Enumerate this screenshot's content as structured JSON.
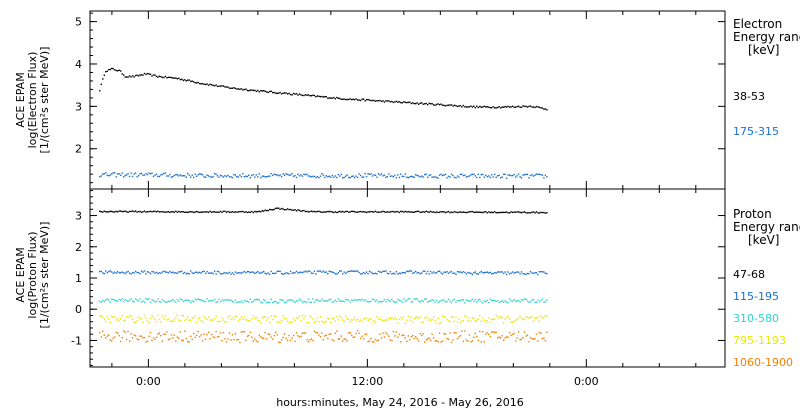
{
  "colors": {
    "black": "#000000",
    "blue": "#1a6fd0",
    "cyan": "#30d0d0",
    "yellow": "#e8e800",
    "orange": "#f08000"
  },
  "chart_data": [
    {
      "type": "scatter",
      "panel": "electron",
      "ylabel": [
        "ACE EPAM",
        "log(Electron Flux)",
        "[1/(cm²s ster MeV)]"
      ],
      "yticks": [
        2,
        3,
        4,
        5
      ],
      "ylim": [
        1.05,
        5.25
      ],
      "legend_title": [
        "Electron",
        "Energy range",
        "[keV]"
      ],
      "series": [
        {
          "name": "38-53",
          "color": "#000000",
          "points": [
            [
              -2.7,
              3.4
            ],
            [
              -2.4,
              3.85
            ],
            [
              -2.0,
              3.9
            ],
            [
              -1.6,
              3.85
            ],
            [
              -1.3,
              3.72
            ],
            [
              -0.8,
              3.72
            ],
            [
              -0.2,
              3.78
            ],
            [
              0.5,
              3.72
            ],
            [
              1.5,
              3.68
            ],
            [
              3.0,
              3.55
            ],
            [
              4.5,
              3.45
            ],
            [
              6.0,
              3.38
            ],
            [
              7.5,
              3.32
            ],
            [
              9.0,
              3.26
            ],
            [
              10.5,
              3.2
            ],
            [
              12.0,
              3.16
            ],
            [
              13.5,
              3.12
            ],
            [
              15.0,
              3.08
            ],
            [
              16.5,
              3.04
            ],
            [
              18.0,
              3.0
            ],
            [
              19.5,
              3.0
            ],
            [
              21.0,
              3.02
            ],
            [
              21.8,
              2.95
            ]
          ]
        },
        {
          "name": "175-315",
          "color": "#1a6fd0",
          "points": [
            [
              -2.7,
              1.4
            ],
            [
              0.0,
              1.4
            ],
            [
              3.0,
              1.38
            ],
            [
              6.0,
              1.38
            ],
            [
              9.0,
              1.38
            ],
            [
              12.0,
              1.38
            ],
            [
              15.0,
              1.37
            ],
            [
              18.0,
              1.37
            ],
            [
              21.0,
              1.37
            ],
            [
              21.8,
              1.37
            ]
          ]
        }
      ]
    },
    {
      "type": "scatter",
      "panel": "proton",
      "ylabel": [
        "ACE EPAM",
        "log(Proton Flux)",
        "[1/(cm²s ster MeV)]"
      ],
      "yticks": [
        -1,
        0,
        1,
        2,
        3
      ],
      "ylim": [
        -1.85,
        3.85
      ],
      "legend_title": [
        "Proton",
        "Energy range",
        "[keV]"
      ],
      "series": [
        {
          "name": "47-68",
          "color": "#000000",
          "points": [
            [
              -2.7,
              3.15
            ],
            [
              3.0,
              3.14
            ],
            [
              6.0,
              3.14
            ],
            [
              7.0,
              3.25
            ],
            [
              9.0,
              3.14
            ],
            [
              12.0,
              3.14
            ],
            [
              15.0,
              3.14
            ],
            [
              18.0,
              3.13
            ],
            [
              21.8,
              3.12
            ]
          ]
        },
        {
          "name": "115-195",
          "color": "#1a6fd0",
          "points": [
            [
              -2.7,
              1.2
            ],
            [
              3.0,
              1.2
            ],
            [
              6.0,
              1.18
            ],
            [
              9.0,
              1.2
            ],
            [
              12.0,
              1.2
            ],
            [
              15.0,
              1.2
            ],
            [
              18.0,
              1.18
            ],
            [
              21.8,
              1.18
            ]
          ]
        },
        {
          "name": "310-580",
          "color": "#30d0d0",
          "points": [
            [
              -2.7,
              0.3
            ],
            [
              3.0,
              0.3
            ],
            [
              6.0,
              0.28
            ],
            [
              9.0,
              0.3
            ],
            [
              12.0,
              0.3
            ],
            [
              15.0,
              0.3
            ],
            [
              18.0,
              0.28
            ],
            [
              21.8,
              0.3
            ]
          ]
        },
        {
          "name": "795-1193",
          "color": "#e8e800",
          "points": [
            [
              -2.7,
              -0.3
            ],
            [
              3.0,
              -0.28
            ],
            [
              6.0,
              -0.3
            ],
            [
              9.0,
              -0.3
            ],
            [
              12.0,
              -0.3
            ],
            [
              15.0,
              -0.32
            ],
            [
              18.0,
              -0.3
            ],
            [
              21.8,
              -0.3
            ]
          ]
        },
        {
          "name": "1060-1900",
          "color": "#f08000",
          "points": [
            [
              -2.7,
              -0.85
            ],
            [
              3.0,
              -0.85
            ],
            [
              6.0,
              -0.88
            ],
            [
              9.0,
              -0.85
            ],
            [
              12.0,
              -0.85
            ],
            [
              15.0,
              -0.88
            ],
            [
              18.0,
              -0.85
            ],
            [
              21.8,
              -0.85
            ]
          ]
        }
      ]
    }
  ],
  "xaxis": {
    "ticks": [
      0,
      12,
      24
    ],
    "tick_labels": [
      "0:00",
      "12:00",
      "0:00"
    ],
    "minor_step": 2,
    "xlim": [
      -3.2,
      31.6
    ],
    "label": "hours:minutes, May 24, 2016 - May 26, 2016"
  }
}
